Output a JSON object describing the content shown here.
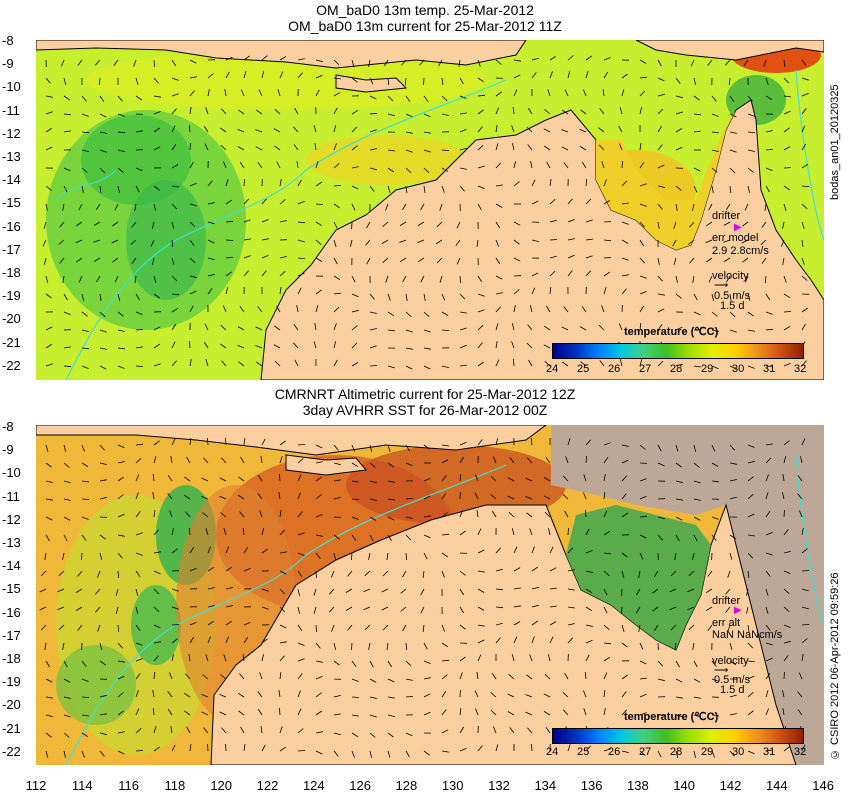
{
  "top": {
    "title_line1": "OM_baD0 13m temp. 25-Mar-2012",
    "title_line2": "OM_baD0 13m current for 25-Mar-2012 11Z",
    "legend_drifter": "drifter",
    "legend_err": "err model",
    "legend_err_val": "2.9 2.8cm/s",
    "legend_velocity": "velocity",
    "legend_speed": "0.5 m/s",
    "legend_days": "1.5 d",
    "colorbar_title": "temperature (℃C)",
    "side_label": "bodas_an01_20120325"
  },
  "bottom": {
    "title_line1": "CMRNRT Altimetric current for 25-Mar-2012 12Z",
    "title_line2": "3day AVHRR SST for 26-Mar-2012 00Z",
    "legend_drifter": "drifter",
    "legend_err": "err alt",
    "legend_err_val": "NaN NaNcm/s",
    "legend_velocity": "velocity",
    "legend_speed": "0.5 m/s",
    "legend_days": "1.5 d",
    "colorbar_title": "temperature (℃C)",
    "side_label": "© CSIRO 2012  06-Apr-2012 09:59:26"
  },
  "axes": {
    "y_ticks": [
      "-8",
      "-9",
      "-10",
      "-11",
      "-12",
      "-13",
      "-14",
      "-15",
      "-16",
      "-17",
      "-18",
      "-19",
      "-20",
      "-21",
      "-22"
    ],
    "x_ticks": [
      "112",
      "114",
      "116",
      "118",
      "120",
      "122",
      "124",
      "126",
      "128",
      "130",
      "132",
      "134",
      "136",
      "138",
      "140",
      "142",
      "144",
      "146"
    ]
  },
  "colorbar": {
    "ticks": [
      "24",
      "25",
      "26",
      "27",
      "28",
      "29",
      "30",
      "31",
      "32"
    ],
    "colors": [
      "#00008b",
      "#0030c0",
      "#0080ff",
      "#00c8e0",
      "#40d080",
      "#40c020",
      "#a0e000",
      "#e0f000",
      "#ffd000",
      "#f09020",
      "#d05010",
      "#902000"
    ]
  }
}
